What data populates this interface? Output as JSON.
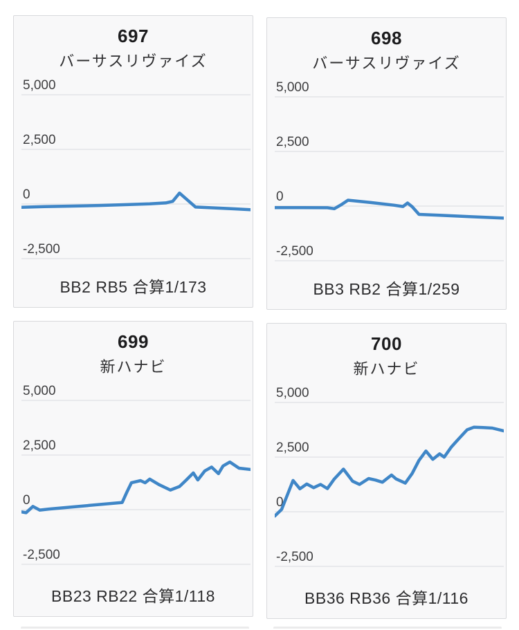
{
  "page": {
    "background_color": "#ffffff"
  },
  "style": {
    "card_background": "#f8f8f9",
    "card_border": "#d8d9dc",
    "grid_line_color": "#e3e4e7",
    "axis_label_color": "#3d3d3f",
    "line_color": "#3f86c7"
  },
  "cards": [
    {
      "machine_number": "697",
      "machine_name": "バーサスリヴァイズ",
      "stats": "BB2 RB5 合算1/173",
      "chart_data": {
        "type": "line",
        "xlabel": "",
        "ylabel": "",
        "ylim": [
          -2500,
          5000
        ],
        "grid": true,
        "y_ticks": [
          5000,
          2500,
          0,
          -2500
        ],
        "y_tick_labels": [
          "5,000",
          "2,500",
          "0",
          "-2,500"
        ],
        "x_is_percent_of_axis": true,
        "points": [
          [
            0,
            -150
          ],
          [
            10,
            -120
          ],
          [
            22,
            -95
          ],
          [
            34,
            -65
          ],
          [
            46,
            -30
          ],
          [
            56,
            5
          ],
          [
            63,
            50
          ],
          [
            66,
            120
          ],
          [
            69,
            500
          ],
          [
            76,
            -140
          ],
          [
            85,
            -185
          ],
          [
            93,
            -220
          ],
          [
            100,
            -260
          ]
        ]
      }
    },
    {
      "machine_number": "698",
      "machine_name": "バーサスリヴァイズ",
      "stats": "BB3 RB2 合算1/259",
      "chart_data": {
        "type": "line",
        "xlabel": "",
        "ylabel": "",
        "ylim": [
          -2500,
          5000
        ],
        "grid": true,
        "y_ticks": [
          5000,
          2500,
          0,
          -2500
        ],
        "y_tick_labels": [
          "5,000",
          "2,500",
          "0",
          "-2,500"
        ],
        "x_is_percent_of_axis": true,
        "points": [
          [
            0,
            -70
          ],
          [
            12,
            -70
          ],
          [
            23,
            -75
          ],
          [
            26,
            -120
          ],
          [
            29,
            60
          ],
          [
            32,
            270
          ],
          [
            42,
            160
          ],
          [
            52,
            40
          ],
          [
            56,
            -20
          ],
          [
            58,
            140
          ],
          [
            60,
            -30
          ],
          [
            63,
            -380
          ],
          [
            72,
            -420
          ],
          [
            85,
            -485
          ],
          [
            100,
            -550
          ]
        ]
      }
    },
    {
      "machine_number": "699",
      "machine_name": "新ハナビ",
      "stats": "BB23 RB22 合算1/118",
      "chart_data": {
        "type": "line",
        "xlabel": "",
        "ylabel": "",
        "ylim": [
          -2500,
          5000
        ],
        "grid": true,
        "y_ticks": [
          5000,
          2500,
          0,
          -2500
        ],
        "y_tick_labels": [
          "5,000",
          "2,500",
          "0",
          "-2,500"
        ],
        "x_is_percent_of_axis": true,
        "points": [
          [
            0,
            -100
          ],
          [
            2,
            -140
          ],
          [
            5,
            150
          ],
          [
            8,
            -20
          ],
          [
            12,
            30
          ],
          [
            44,
            330
          ],
          [
            46,
            800
          ],
          [
            48,
            1230
          ],
          [
            52,
            1330
          ],
          [
            54,
            1230
          ],
          [
            56,
            1400
          ],
          [
            60,
            1150
          ],
          [
            65,
            900
          ],
          [
            69,
            1060
          ],
          [
            72,
            1360
          ],
          [
            75,
            1680
          ],
          [
            77,
            1360
          ],
          [
            80,
            1770
          ],
          [
            83,
            1950
          ],
          [
            86,
            1650
          ],
          [
            88,
            2000
          ],
          [
            91,
            2180
          ],
          [
            95,
            1900
          ],
          [
            100,
            1840
          ]
        ]
      }
    },
    {
      "machine_number": "700",
      "machine_name": "新ハナビ",
      "stats": "BB36 RB36 合算1/116",
      "chart_data": {
        "type": "line",
        "xlabel": "",
        "ylabel": "",
        "ylim": [
          -2500,
          5000
        ],
        "grid": true,
        "y_ticks": [
          5000,
          2500,
          0,
          -2500
        ],
        "y_tick_labels": [
          "5,000",
          "2,500",
          "0",
          "-2,500"
        ],
        "x_is_percent_of_axis": true,
        "points": [
          [
            0,
            -200
          ],
          [
            3,
            100
          ],
          [
            8,
            1430
          ],
          [
            11,
            1050
          ],
          [
            14,
            1270
          ],
          [
            17,
            1100
          ],
          [
            20,
            1250
          ],
          [
            23,
            1060
          ],
          [
            26,
            1500
          ],
          [
            30,
            1950
          ],
          [
            34,
            1400
          ],
          [
            37,
            1250
          ],
          [
            41,
            1520
          ],
          [
            44,
            1450
          ],
          [
            47,
            1350
          ],
          [
            51,
            1680
          ],
          [
            53,
            1500
          ],
          [
            57,
            1310
          ],
          [
            60,
            1750
          ],
          [
            63,
            2350
          ],
          [
            66,
            2780
          ],
          [
            69,
            2400
          ],
          [
            72,
            2650
          ],
          [
            74,
            2500
          ],
          [
            77,
            2950
          ],
          [
            80,
            3300
          ],
          [
            84,
            3750
          ],
          [
            87,
            3870
          ],
          [
            91,
            3850
          ],
          [
            95,
            3830
          ],
          [
            100,
            3700
          ]
        ]
      }
    }
  ]
}
